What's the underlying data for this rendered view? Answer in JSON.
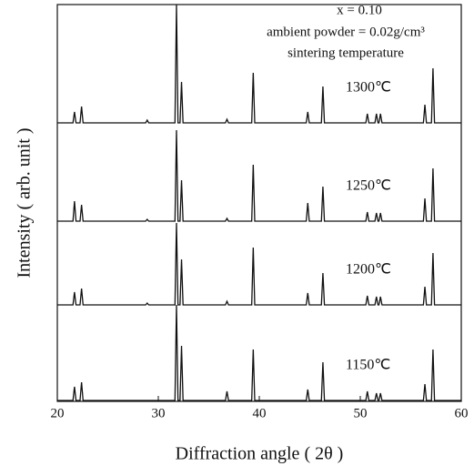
{
  "chart_data": {
    "type": "line",
    "annotations": [
      "x = 0.10",
      "ambient powder = 0.02g/cm³",
      "sintering temperature"
    ],
    "x_label": "Diffraction angle ( 2θ )",
    "y_label": "Intensity ( arb. unit )",
    "xlim": [
      20,
      60
    ],
    "xticks": [
      20,
      30,
      40,
      50,
      60
    ],
    "ylim": [
      0,
      100
    ],
    "x": [
      20,
      21.55,
      21.7,
      21.85,
      22.25,
      22.4,
      22.55,
      28.75,
      28.9,
      29.05,
      31.65,
      31.8,
      31.95,
      32.15,
      32.3,
      32.45,
      36.65,
      36.8,
      36.95,
      39.25,
      39.4,
      39.55,
      44.65,
      44.8,
      44.95,
      46.15,
      46.3,
      46.45,
      50.55,
      50.7,
      50.85,
      51.45,
      51.6,
      51.75,
      51.85,
      52.0,
      52.15,
      56.25,
      56.4,
      56.55,
      57.05,
      57.2,
      57.35,
      60
    ],
    "series": [
      {
        "name": "1300℃",
        "color": "#111111",
        "values": [
          0,
          0,
          12,
          0,
          0,
          18,
          0,
          0,
          3,
          0,
          0,
          130,
          0,
          0,
          45,
          0,
          0,
          4,
          0,
          0,
          55,
          0,
          0,
          12,
          0,
          0,
          40,
          0,
          0,
          10,
          0,
          0,
          10,
          0,
          0,
          10,
          0,
          0,
          20,
          0,
          0,
          60,
          0,
          0
        ]
      },
      {
        "name": "1250℃",
        "color": "#111111",
        "values": [
          0,
          0,
          22,
          0,
          0,
          18,
          0,
          0,
          2,
          0,
          0,
          100,
          0,
          0,
          45,
          0,
          0,
          3,
          0,
          0,
          62,
          0,
          0,
          20,
          0,
          0,
          38,
          0,
          0,
          10,
          0,
          0,
          9,
          0,
          0,
          9,
          0,
          0,
          25,
          0,
          0,
          58,
          0,
          0
        ]
      },
      {
        "name": "1200℃",
        "color": "#111111",
        "values": [
          0,
          0,
          14,
          0,
          0,
          18,
          0,
          0,
          2,
          0,
          0,
          90,
          0,
          0,
          50,
          0,
          0,
          4,
          0,
          0,
          63,
          0,
          0,
          13,
          0,
          0,
          35,
          0,
          0,
          10,
          0,
          0,
          9,
          0,
          0,
          9,
          0,
          0,
          20,
          0,
          0,
          57,
          0,
          0
        ]
      },
      {
        "name": "1150℃",
        "color": "#111111",
        "values": [
          0,
          0,
          15,
          0,
          0,
          20,
          0,
          0,
          0,
          0,
          0,
          105,
          0,
          0,
          60,
          0,
          0,
          10,
          0,
          0,
          56,
          0,
          0,
          12,
          0,
          0,
          42,
          0,
          0,
          10,
          0,
          0,
          8,
          0,
          0,
          8,
          0,
          0,
          18,
          0,
          0,
          56,
          0,
          0
        ]
      }
    ]
  }
}
